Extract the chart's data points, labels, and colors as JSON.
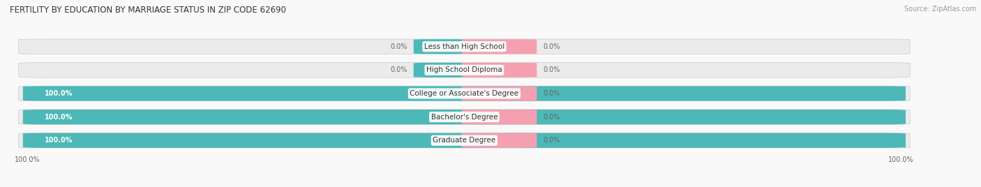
{
  "title": "FERTILITY BY EDUCATION BY MARRIAGE STATUS IN ZIP CODE 62690",
  "source": "Source: ZipAtlas.com",
  "categories": [
    "Less than High School",
    "High School Diploma",
    "College or Associate's Degree",
    "Bachelor's Degree",
    "Graduate Degree"
  ],
  "married_pct": [
    0.0,
    0.0,
    100.0,
    100.0,
    100.0
  ],
  "unmarried_pct": [
    0.0,
    0.0,
    0.0,
    0.0,
    0.0
  ],
  "married_color": "#4db8b8",
  "unmarried_color": "#f4a0b0",
  "bar_bg_color": "#e0e0e0",
  "figsize": [
    14.06,
    2.68
  ],
  "title_fontsize": 8.5,
  "source_fontsize": 7,
  "label_fontsize": 7,
  "category_fontsize": 7.5,
  "legend_fontsize": 7.5,
  "background_color": "#f9f9f9",
  "bar_row_bg": "#ebebeb"
}
